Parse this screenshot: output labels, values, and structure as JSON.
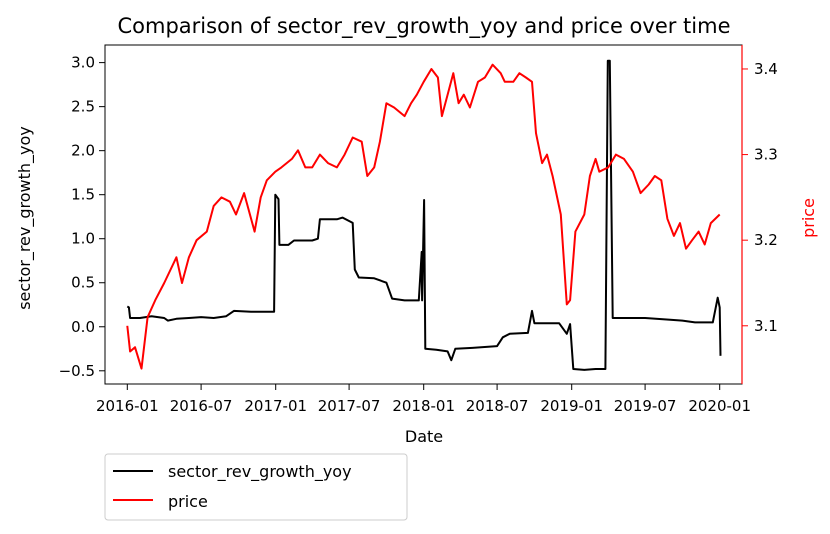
{
  "chart_data": {
    "type": "line",
    "title": "Comparison of sector_rev_growth_yoy and price over time",
    "xlabel": "Date",
    "ylabel_left": "sector_rev_growth_yoy",
    "ylabel_right": "price",
    "x_ticks": [
      "2016-01",
      "2016-07",
      "2017-01",
      "2017-07",
      "2018-01",
      "2018-07",
      "2019-01",
      "2019-07",
      "2020-01"
    ],
    "y_left_ticks": [
      "−0.5",
      "0.0",
      "0.5",
      "1.0",
      "1.5",
      "2.0",
      "2.5",
      "3.0"
    ],
    "y_right_ticks": [
      "3.1",
      "3.2",
      "3.3",
      "3.4"
    ],
    "xlim": [
      "2015-11-07",
      "2020-02-25"
    ],
    "y_left_lim": [
      -0.65,
      3.2
    ],
    "y_right_lim": [
      3.032,
      3.428
    ],
    "grid": false,
    "legend_placement": "below-left",
    "colors": {
      "sector_rev_growth_yoy": "#000000",
      "price": "#ff0000",
      "right_axis": "#ff0000"
    },
    "series": [
      {
        "name": "sector_rev_growth_yoy",
        "axis": "left",
        "color": "#000000",
        "points": [
          [
            "2016-01-01",
            0.23
          ],
          [
            "2016-01-05",
            0.22
          ],
          [
            "2016-01-08",
            0.1
          ],
          [
            "2016-02-01",
            0.1
          ],
          [
            "2016-03-01",
            0.12
          ],
          [
            "2016-04-01",
            0.1
          ],
          [
            "2016-04-10",
            0.07
          ],
          [
            "2016-05-01",
            0.09
          ],
          [
            "2016-06-01",
            0.1
          ],
          [
            "2016-07-01",
            0.11
          ],
          [
            "2016-08-01",
            0.1
          ],
          [
            "2016-09-01",
            0.12
          ],
          [
            "2016-09-20",
            0.18
          ],
          [
            "2016-11-01",
            0.17
          ],
          [
            "2016-12-28",
            0.17
          ],
          [
            "2016-12-31",
            1.5
          ],
          [
            "2017-01-08",
            1.45
          ],
          [
            "2017-01-10",
            0.93
          ],
          [
            "2017-02-01",
            0.93
          ],
          [
            "2017-02-15",
            0.98
          ],
          [
            "2017-04-01",
            0.98
          ],
          [
            "2017-04-15",
            1.0
          ],
          [
            "2017-04-20",
            1.22
          ],
          [
            "2017-06-01",
            1.22
          ],
          [
            "2017-06-15",
            1.24
          ],
          [
            "2017-07-10",
            1.18
          ],
          [
            "2017-07-15",
            0.65
          ],
          [
            "2017-07-25",
            0.56
          ],
          [
            "2017-09-01",
            0.55
          ],
          [
            "2017-10-01",
            0.5
          ],
          [
            "2017-10-15",
            0.32
          ],
          [
            "2017-11-15",
            0.3
          ],
          [
            "2017-12-20",
            0.3
          ],
          [
            "2017-12-27",
            0.85
          ],
          [
            "2017-12-28",
            0.3
          ],
          [
            "2018-01-02",
            1.44
          ],
          [
            "2018-01-05",
            -0.25
          ],
          [
            "2018-02-01",
            -0.26
          ],
          [
            "2018-03-01",
            -0.28
          ],
          [
            "2018-03-10",
            -0.38
          ],
          [
            "2018-03-20",
            -0.25
          ],
          [
            "2018-05-01",
            -0.24
          ],
          [
            "2018-07-01",
            -0.22
          ],
          [
            "2018-07-15",
            -0.12
          ],
          [
            "2018-08-01",
            -0.08
          ],
          [
            "2018-09-15",
            -0.07
          ],
          [
            "2018-09-25",
            0.18
          ],
          [
            "2018-10-01",
            0.04
          ],
          [
            "2018-12-01",
            0.04
          ],
          [
            "2018-12-20",
            -0.08
          ],
          [
            "2018-12-28",
            0.03
          ],
          [
            "2019-01-05",
            -0.48
          ],
          [
            "2019-02-01",
            -0.49
          ],
          [
            "2019-03-01",
            -0.48
          ],
          [
            "2019-03-25",
            -0.48
          ],
          [
            "2019-03-31",
            3.02
          ],
          [
            "2019-04-05",
            3.02
          ],
          [
            "2019-04-12",
            0.1
          ],
          [
            "2019-06-01",
            0.1
          ],
          [
            "2019-07-01",
            0.1
          ],
          [
            "2019-09-01",
            0.08
          ],
          [
            "2019-10-01",
            0.07
          ],
          [
            "2019-11-01",
            0.05
          ],
          [
            "2019-12-15",
            0.05
          ],
          [
            "2019-12-27",
            0.33
          ],
          [
            "2020-01-01",
            0.22
          ],
          [
            "2020-01-03",
            -0.33
          ]
        ]
      },
      {
        "name": "price",
        "axis": "right",
        "color": "#ff0000",
        "points": [
          [
            "2016-01-01",
            3.1
          ],
          [
            "2016-01-08",
            3.07
          ],
          [
            "2016-01-20",
            3.075
          ],
          [
            "2016-02-05",
            3.05
          ],
          [
            "2016-02-20",
            3.11
          ],
          [
            "2016-03-10",
            3.13
          ],
          [
            "2016-04-01",
            3.15
          ],
          [
            "2016-05-01",
            3.18
          ],
          [
            "2016-05-15",
            3.15
          ],
          [
            "2016-06-01",
            3.18
          ],
          [
            "2016-06-20",
            3.2
          ],
          [
            "2016-07-15",
            3.21
          ],
          [
            "2016-08-01",
            3.24
          ],
          [
            "2016-08-20",
            3.25
          ],
          [
            "2016-09-10",
            3.245
          ],
          [
            "2016-09-25",
            3.23
          ],
          [
            "2016-10-15",
            3.255
          ],
          [
            "2016-11-10",
            3.21
          ],
          [
            "2016-11-25",
            3.25
          ],
          [
            "2016-12-10",
            3.27
          ],
          [
            "2016-12-31",
            3.28
          ],
          [
            "2017-01-15",
            3.285
          ],
          [
            "2017-02-10",
            3.295
          ],
          [
            "2017-02-25",
            3.305
          ],
          [
            "2017-03-15",
            3.285
          ],
          [
            "2017-04-01",
            3.285
          ],
          [
            "2017-04-20",
            3.3
          ],
          [
            "2017-05-10",
            3.29
          ],
          [
            "2017-06-01",
            3.285
          ],
          [
            "2017-06-20",
            3.3
          ],
          [
            "2017-07-10",
            3.32
          ],
          [
            "2017-08-01",
            3.315
          ],
          [
            "2017-08-15",
            3.275
          ],
          [
            "2017-09-01",
            3.285
          ],
          [
            "2017-09-15",
            3.315
          ],
          [
            "2017-10-01",
            3.36
          ],
          [
            "2017-10-20",
            3.355
          ],
          [
            "2017-11-15",
            3.345
          ],
          [
            "2017-12-01",
            3.36
          ],
          [
            "2017-12-15",
            3.37
          ],
          [
            "2018-01-01",
            3.385
          ],
          [
            "2018-01-20",
            3.4
          ],
          [
            "2018-02-05",
            3.39
          ],
          [
            "2018-02-15",
            3.345
          ],
          [
            "2018-03-01",
            3.37
          ],
          [
            "2018-03-15",
            3.395
          ],
          [
            "2018-03-28",
            3.36
          ],
          [
            "2018-04-10",
            3.37
          ],
          [
            "2018-04-25",
            3.355
          ],
          [
            "2018-05-15",
            3.385
          ],
          [
            "2018-06-01",
            3.39
          ],
          [
            "2018-06-20",
            3.405
          ],
          [
            "2018-07-10",
            3.395
          ],
          [
            "2018-07-20",
            3.385
          ],
          [
            "2018-08-10",
            3.385
          ],
          [
            "2018-08-25",
            3.395
          ],
          [
            "2018-09-10",
            3.39
          ],
          [
            "2018-09-25",
            3.385
          ],
          [
            "2018-10-05",
            3.325
          ],
          [
            "2018-10-20",
            3.29
          ],
          [
            "2018-11-01",
            3.3
          ],
          [
            "2018-11-15",
            3.275
          ],
          [
            "2018-12-05",
            3.23
          ],
          [
            "2018-12-20",
            3.125
          ],
          [
            "2018-12-28",
            3.13
          ],
          [
            "2019-01-10",
            3.21
          ],
          [
            "2019-02-01",
            3.23
          ],
          [
            "2019-02-15",
            3.275
          ],
          [
            "2019-03-01",
            3.295
          ],
          [
            "2019-03-10",
            3.28
          ],
          [
            "2019-04-01",
            3.285
          ],
          [
            "2019-04-20",
            3.3
          ],
          [
            "2019-05-10",
            3.295
          ],
          [
            "2019-06-01",
            3.28
          ],
          [
            "2019-06-20",
            3.255
          ],
          [
            "2019-07-10",
            3.265
          ],
          [
            "2019-07-25",
            3.275
          ],
          [
            "2019-08-10",
            3.27
          ],
          [
            "2019-08-25",
            3.225
          ],
          [
            "2019-09-10",
            3.205
          ],
          [
            "2019-09-25",
            3.22
          ],
          [
            "2019-10-10",
            3.19
          ],
          [
            "2019-10-25",
            3.2
          ],
          [
            "2019-11-10",
            3.21
          ],
          [
            "2019-11-25",
            3.195
          ],
          [
            "2019-12-10",
            3.22
          ],
          [
            "2020-01-01",
            3.23
          ]
        ]
      }
    ]
  }
}
